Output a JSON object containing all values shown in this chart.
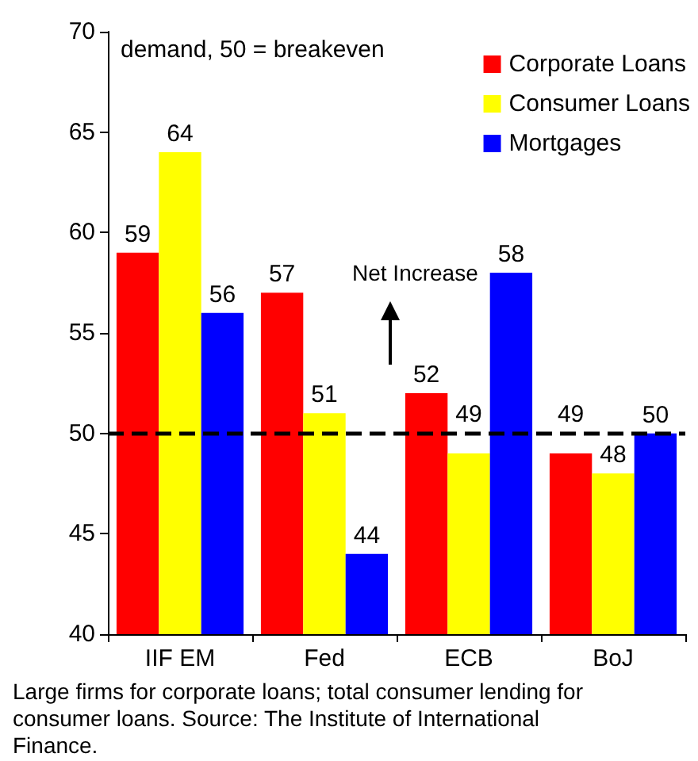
{
  "chart_data": {
    "type": "bar",
    "categories": [
      "IIF EM",
      "Fed",
      "ECB",
      "BoJ"
    ],
    "series": [
      {
        "name": "Corporate Loans",
        "color": "#ff0000",
        "values": [
          59,
          57,
          52,
          49
        ]
      },
      {
        "name": "Consumer Loans",
        "color": "#ffff00",
        "values": [
          64,
          51,
          49,
          48
        ]
      },
      {
        "name": "Mortgages",
        "color": "#0000ff",
        "values": [
          56,
          44,
          58,
          50
        ]
      }
    ],
    "ylim": [
      40,
      70
    ],
    "yticks": [
      40,
      45,
      50,
      55,
      60,
      65,
      70
    ],
    "ref_lines": [
      {
        "axis": "y",
        "value": 50,
        "color": "#000000",
        "line_style": "dashed"
      }
    ],
    "annotations": [
      "demand, 50 = breakeven",
      "Net Increase",
      "Large firms for corporate loans; total consumer lending for consumer loans.  Source: The Institute of International Finance."
    ],
    "data_labels": true,
    "grid": false,
    "legend": "top right"
  }
}
